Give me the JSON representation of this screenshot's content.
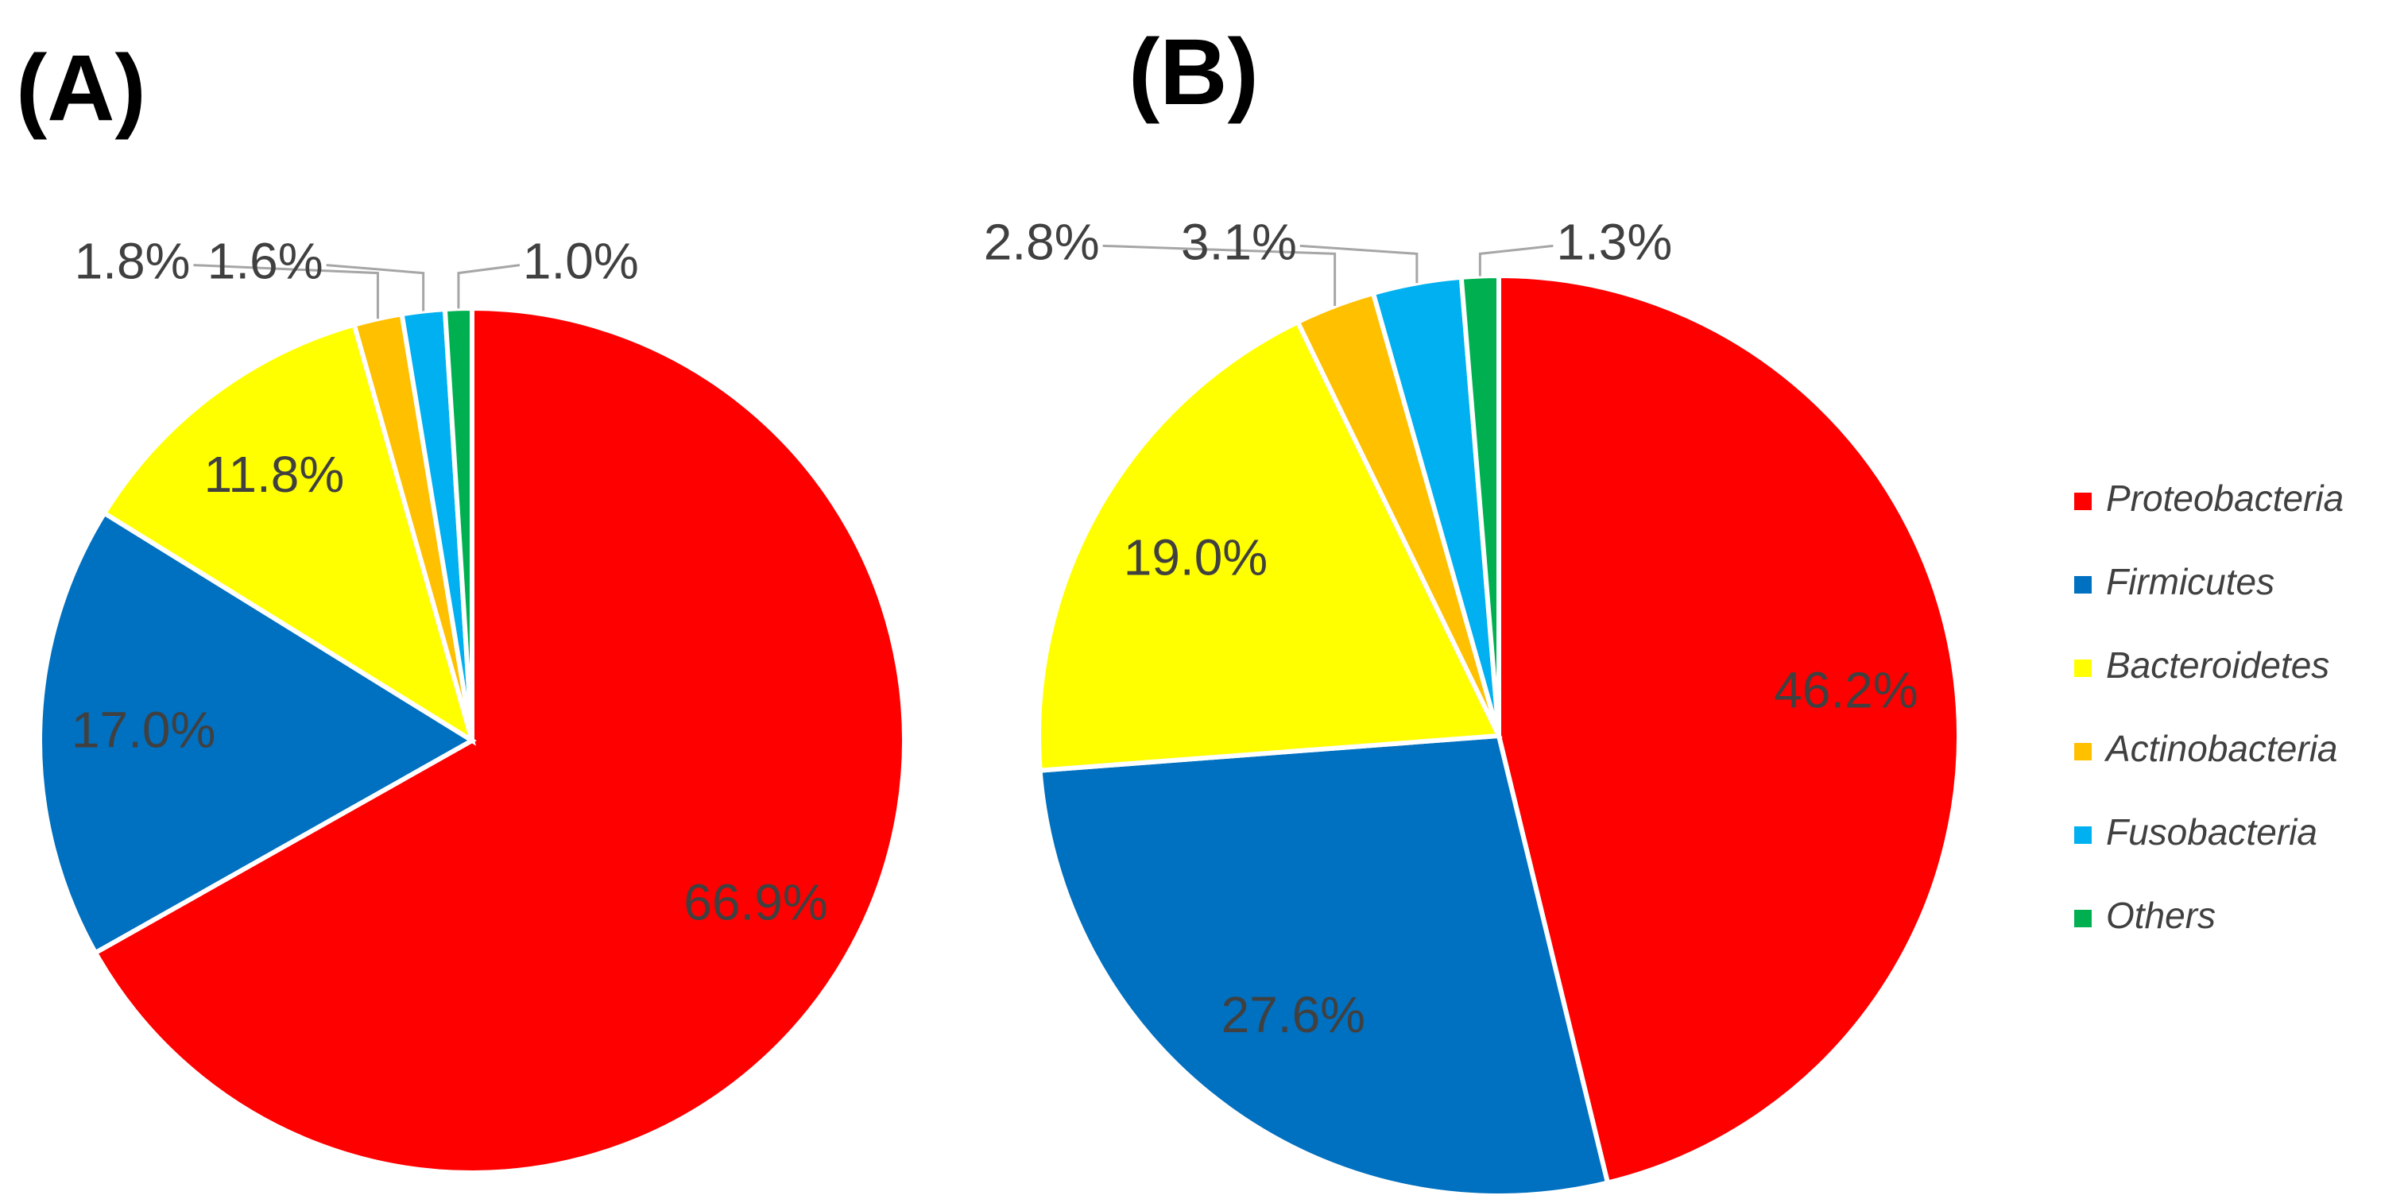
{
  "chart_data": [
    {
      "type": "pie",
      "title": "(A)",
      "values": [
        66.9,
        17.0,
        11.8,
        1.8,
        1.6,
        1.0
      ],
      "value_labels": [
        "66.9%",
        "17.0%",
        "11.8%",
        "1.8%",
        "1.6%",
        "1.0%"
      ]
    },
    {
      "type": "pie",
      "title": "(B)",
      "values": [
        46.2,
        27.6,
        19.0,
        2.8,
        3.1,
        1.3
      ],
      "value_labels": [
        "46.2%",
        "27.6%",
        "19.0%",
        "2.8%",
        "3.1%",
        "1.3%"
      ]
    }
  ],
  "legend": {
    "position": "right",
    "categories": [
      "Proteobacteria",
      "Firmicutes",
      "Bacteroidetes",
      "Actinobacteria",
      "Fusobacteria",
      "Others"
    ],
    "colors": [
      "#ff0000",
      "#0070c0",
      "#ffff00",
      "#ffc000",
      "#00b0f0",
      "#00b050"
    ]
  }
}
